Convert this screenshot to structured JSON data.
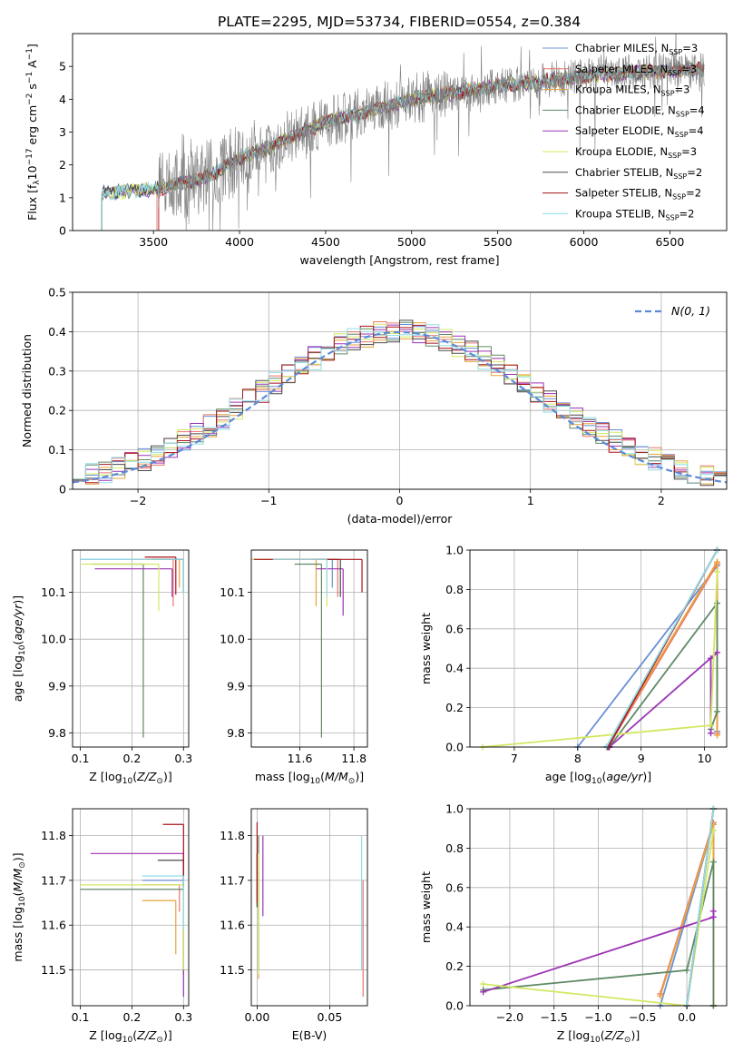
{
  "figure": {
    "title": "PLATE=2295, MJD=53734, FIBERID=0554, z=0.384"
  },
  "models": [
    {
      "name": "Chabrier MILES, N$_{SSP}$=3",
      "label": "Chabrier MILES, N",
      "ssp": "=3",
      "color": "#6b8fd6"
    },
    {
      "name": "Salpeter MILES, N$_{SSP}$=3",
      "label": "Salpeter MILES, N",
      "ssp": "=3",
      "color": "#e8766e"
    },
    {
      "name": "Kroupa MILES, N$_{SSP}$=3",
      "label": "Kroupa MILES, N",
      "ssp": "=3",
      "color": "#e8a23c"
    },
    {
      "name": "Chabrier ELODIE, N$_{SSP}$=4",
      "label": "Chabrier ELODIE, N",
      "ssp": "=4",
      "color": "#5f8a66"
    },
    {
      "name": "Salpeter ELODIE, N$_{SSP}$=4",
      "label": "Salpeter ELODIE, N",
      "ssp": "=4",
      "color": "#9b33b5"
    },
    {
      "name": "Kroupa ELODIE, N$_{SSP}$=3",
      "label": "Kroupa ELODIE, N",
      "ssp": "=3",
      "color": "#d2e862"
    },
    {
      "name": "Chabrier STELIB, N$_{SSP}$=2",
      "label": "Chabrier STELIB, N",
      "ssp": "=2",
      "color": "#4a4a4a"
    },
    {
      "name": "Salpeter STELIB, N$_{SSP}$=2",
      "label": "Salpeter STELIB, N",
      "ssp": "=2",
      "color": "#a8141a"
    },
    {
      "name": "Kroupa STELIB, N$_{SSP}$=2",
      "label": "Kroupa STELIB, N",
      "ssp": "=2",
      "color": "#8fdde6"
    }
  ],
  "chart_data": [
    {
      "id": "spectrum",
      "type": "line",
      "xlabel": "wavelength [Angstrom, rest frame]",
      "ylabel": "Flux [f$_\\lambda$10$^{-17}$ erg cm$^{-2}$ s$^{-1}$ A$^{-1}$]",
      "xlim": [
        3030,
        6830
      ],
      "ylim": [
        0,
        6
      ],
      "xticks": [
        3500,
        4000,
        4500,
        5000,
        5500,
        6000,
        6500
      ],
      "yticks": [
        0,
        1,
        2,
        3,
        4,
        5
      ],
      "data_color": "#808080",
      "model_level_points": [
        [
          3200,
          1.15
        ],
        [
          3500,
          1.25
        ],
        [
          3800,
          1.6
        ],
        [
          4000,
          2.2
        ],
        [
          4200,
          2.6
        ],
        [
          4500,
          3.3
        ],
        [
          4800,
          3.7
        ],
        [
          5000,
          4.0
        ],
        [
          5500,
          4.4
        ],
        [
          6000,
          4.7
        ],
        [
          6500,
          4.9
        ],
        [
          6700,
          4.9
        ]
      ],
      "model_start_wavelengths": [
        3200,
        3520,
        3200,
        3200,
        3200,
        3200,
        3200,
        3530,
        3200
      ],
      "model_end_wavelength": 6700,
      "data_start_wavelength": 3530,
      "data_end_wavelength": 6700,
      "grid": false,
      "legend_location": "upper right"
    },
    {
      "id": "residuals",
      "type": "histogram",
      "xlabel": "(data-model)/error",
      "ylabel": "Normed distribution",
      "xlim": [
        -2.5,
        2.5
      ],
      "ylim": [
        0,
        0.5
      ],
      "xticks": [
        -2,
        -1,
        0,
        1,
        2
      ],
      "yticks": [
        0,
        0.1,
        0.2,
        0.3,
        0.4,
        0.5
      ],
      "reference_curve": {
        "name": "$\\mathcal{N}(0,1)$",
        "label": "N(0, 1)",
        "color": "#5b8ad8",
        "mu": 0,
        "sigma": 1
      },
      "bin_width": 0.1,
      "grid": true,
      "legend_location": "upper right"
    },
    {
      "id": "age-vs-Z",
      "type": "scatter-errorbar",
      "xlabel": "Z [log$_{10}$(Z/Z$_\\odot$)]",
      "ylabel": "age  [log$_{10}$(age/yr)]",
      "xlim": [
        0.085,
        0.31
      ],
      "ylim": [
        9.77,
        10.19
      ],
      "xticks": [
        0.1,
        0.2,
        0.3
      ],
      "yticks": [
        9.8,
        9.9,
        10.0,
        10.1
      ],
      "points": [
        {
          "x": 0.3,
          "y": 10.17,
          "xerr": [
            0.2,
            0
          ],
          "yerr": [
            0.06,
            0
          ]
        },
        {
          "x": 0.28,
          "y": 10.17,
          "xerr": [
            0.08,
            0
          ],
          "yerr": [
            0.1,
            0
          ]
        },
        {
          "x": 0.292,
          "y": 10.17,
          "xerr": [
            0.07,
            0
          ],
          "yerr": [
            0.06,
            0
          ]
        },
        {
          "x": 0.222,
          "y": 10.16,
          "xerr": [
            0.1,
            0
          ],
          "yerr": [
            0.37,
            0
          ]
        },
        {
          "x": 0.278,
          "y": 10.15,
          "xerr": [
            0.15,
            0
          ],
          "yerr": [
            0.06,
            0
          ]
        },
        {
          "x": 0.252,
          "y": 10.16,
          "xerr": [
            0.15,
            0
          ],
          "yerr": [
            0.1,
            0
          ]
        },
        {
          "x": 0.3,
          "y": 10.17,
          "xerr": [
            0.06,
            0
          ],
          "yerr": [
            0.07,
            0
          ]
        },
        {
          "x": 0.285,
          "y": 10.175,
          "xerr": [
            0.06,
            0
          ],
          "yerr": [
            0.08,
            0
          ]
        },
        {
          "x": 0.3,
          "y": 10.17,
          "xerr": [
            0.2,
            0
          ],
          "yerr": [
            0.07,
            0
          ]
        }
      ],
      "grid": true
    },
    {
      "id": "age-vs-mass",
      "type": "scatter-errorbar",
      "xlabel": "mass [log$_{10}$(M/M$_\\odot$)]",
      "ylabel": "",
      "xlim": [
        11.42,
        11.85
      ],
      "ylim": [
        9.77,
        10.19
      ],
      "xticks": [
        11.6,
        11.8
      ],
      "yticks": [
        9.8,
        9.9,
        10.0,
        10.1
      ],
      "points": [
        {
          "x": 11.72,
          "y": 10.17,
          "xerr": [
            0.3,
            0
          ],
          "yerr": [
            0.06,
            0
          ]
        },
        {
          "x": 11.74,
          "y": 10.17,
          "xerr": [
            0.18,
            0
          ],
          "yerr": [
            0.08,
            0
          ]
        },
        {
          "x": 11.66,
          "y": 10.17,
          "xerr": [
            0.2,
            0
          ],
          "yerr": [
            0.1,
            0
          ]
        },
        {
          "x": 11.68,
          "y": 10.16,
          "xerr": [
            0.1,
            0
          ],
          "yerr": [
            0.37,
            0
          ]
        },
        {
          "x": 11.76,
          "y": 10.15,
          "xerr": [
            0.1,
            0
          ],
          "yerr": [
            0.1,
            0
          ]
        },
        {
          "x": 11.7,
          "y": 10.17,
          "xerr": [
            0.3,
            0
          ],
          "yerr": [
            0.1,
            0
          ]
        },
        {
          "x": 11.75,
          "y": 10.17,
          "xerr": [
            0.1,
            0
          ],
          "yerr": [
            0.08,
            0
          ]
        },
        {
          "x": 11.83,
          "y": 10.17,
          "xerr": [
            0.4,
            0
          ],
          "yerr": [
            0.07,
            0
          ]
        },
        {
          "x": 11.7,
          "y": 10.17,
          "xerr": [
            0.2,
            0
          ],
          "yerr": [
            0.08,
            0
          ]
        }
      ],
      "grid": true
    },
    {
      "id": "weight-vs-age",
      "type": "line",
      "xlabel": "age  [log$_{10}$(age/yr)]",
      "ylabel": "mass weight",
      "xlim": [
        6.3,
        10.35
      ],
      "ylim": [
        0,
        1
      ],
      "xticks": [
        7,
        8,
        9,
        10
      ],
      "yticks": [
        0,
        0.2,
        0.4,
        0.6,
        0.8,
        1.0
      ],
      "series": [
        {
          "x": [
            8.0,
            10.2,
            10.2
          ],
          "y": [
            0.0,
            0.92,
            0.08
          ]
        },
        {
          "x": [
            8.48,
            10.2,
            10.2
          ],
          "y": [
            0.0,
            0.93,
            0.07
          ]
        },
        {
          "x": [
            8.46,
            10.2,
            10.2
          ],
          "y": [
            0.0,
            0.94,
            0.06
          ]
        },
        {
          "x": [
            8.5,
            10.2,
            10.2,
            10.1
          ],
          "y": [
            0.0,
            0.73,
            0.18,
            0.09
          ]
        },
        {
          "x": [
            8.5,
            10.2,
            10.1,
            10.1
          ],
          "y": [
            0.0,
            0.48,
            0.45,
            0.07
          ]
        },
        {
          "x": [
            6.5,
            10.1,
            10.2
          ],
          "y": [
            0.0,
            0.11,
            0.89
          ]
        },
        {
          "x": [
            8.46,
            10.2
          ],
          "y": [
            0.0,
            1.0
          ]
        },
        {
          "x": [
            8.48,
            10.2
          ],
          "y": [
            0.0,
            1.0
          ]
        },
        {
          "x": [
            8.45,
            10.2
          ],
          "y": [
            0.0,
            1.0
          ]
        }
      ],
      "grid": true
    },
    {
      "id": "mass-vs-Z",
      "type": "scatter-errorbar",
      "xlabel": "Z [log$_{10}$(Z/Z$_\\odot$)]",
      "ylabel": "mass [log$_{10}$(M/M$_\\odot$)]",
      "xlim": [
        0.085,
        0.31
      ],
      "ylim": [
        11.42,
        11.86
      ],
      "xticks": [
        0.1,
        0.2,
        0.3
      ],
      "yticks": [
        11.5,
        11.6,
        11.7,
        11.8
      ],
      "points": [
        {
          "x": 0.3,
          "y": 11.7,
          "xerr": [
            0.08,
            0
          ],
          "yerr": [
            0.1,
            0
          ]
        },
        {
          "x": 0.292,
          "y": 11.69,
          "xerr": [
            0.07,
            0
          ],
          "yerr": [
            0.06,
            0
          ]
        },
        {
          "x": 0.285,
          "y": 11.655,
          "xerr": [
            0.065,
            0
          ],
          "yerr": [
            0.12,
            0
          ]
        },
        {
          "x": 0.3,
          "y": 11.68,
          "xerr": [
            0.2,
            0
          ],
          "yerr": [
            0.19,
            0
          ]
        },
        {
          "x": 0.3,
          "y": 11.76,
          "xerr": [
            0.18,
            0
          ],
          "yerr": [
            0.32,
            0
          ]
        },
        {
          "x": 0.3,
          "y": 11.69,
          "xerr": [
            0.2,
            0
          ],
          "yerr": [
            0.19,
            0
          ]
        },
        {
          "x": 0.3,
          "y": 11.745,
          "xerr": [
            0.05,
            0
          ],
          "yerr": [
            0.06,
            0
          ]
        },
        {
          "x": 0.3,
          "y": 11.825,
          "xerr": [
            0.04,
            0
          ],
          "yerr": [
            0.12,
            0
          ]
        },
        {
          "x": 0.3,
          "y": 11.71,
          "xerr": [
            0.08,
            0
          ],
          "yerr": [
            0.12,
            0
          ]
        }
      ],
      "grid": true
    },
    {
      "id": "mass-vs-ebv",
      "type": "scatter-errorbar",
      "xlabel": "E(B-V)",
      "ylabel": "",
      "xlim": [
        -0.004,
        0.076
      ],
      "ylim": [
        11.42,
        11.86
      ],
      "xticks": [
        0.0,
        0.05
      ],
      "yticks": [
        11.5,
        11.6,
        11.7,
        11.8
      ],
      "points": [
        {
          "x": 0.0,
          "y": 11.7,
          "xerr": [
            0,
            0
          ],
          "yerr": [
            0.06,
            0.06
          ]
        },
        {
          "x": 0.073,
          "y": 11.58,
          "xerr": [
            0,
            0
          ],
          "yerr": [
            0.14,
            0.12
          ]
        },
        {
          "x": 0.001,
          "y": 11.6,
          "xerr": [
            0,
            0
          ],
          "yerr": [
            0.12,
            0.12
          ]
        },
        {
          "x": 0.001,
          "y": 11.65,
          "xerr": [
            0,
            0
          ],
          "yerr": [
            0.15,
            0.15
          ]
        },
        {
          "x": 0.004,
          "y": 11.71,
          "xerr": [
            0,
            0
          ],
          "yerr": [
            0.09,
            0.09
          ]
        },
        {
          "x": 0.001,
          "y": 11.62,
          "xerr": [
            0,
            0
          ],
          "yerr": [
            0.13,
            0.14
          ]
        },
        {
          "x": 0.0,
          "y": 11.7,
          "xerr": [
            0,
            0
          ],
          "yerr": [
            0.06,
            0.06
          ]
        },
        {
          "x": 0.0,
          "y": 11.74,
          "xerr": [
            0,
            0
          ],
          "yerr": [
            0.09,
            0.09
          ]
        },
        {
          "x": 0.072,
          "y": 11.65,
          "xerr": [
            0,
            0
          ],
          "yerr": [
            0.15,
            0.15
          ]
        }
      ],
      "grid": true
    },
    {
      "id": "weight-vs-Z",
      "type": "line",
      "xlabel": "Z [log$_{10}$(Z/Z$_\\odot$)]",
      "ylabel": "mass weight",
      "xlim": [
        -2.45,
        0.45
      ],
      "ylim": [
        0,
        1
      ],
      "xticks": [
        -2.0,
        -1.5,
        -1.0,
        -0.5,
        0.0
      ],
      "yticks": [
        0,
        0.2,
        0.4,
        0.6,
        0.8,
        1.0
      ],
      "series": [
        {
          "x": [
            -0.3,
            0.3,
            0.3
          ],
          "y": [
            0.0,
            0.92,
            0.0
          ]
        },
        {
          "x": [
            -0.3,
            0.3,
            0.3
          ],
          "y": [
            0.06,
            0.93,
            0.0
          ]
        },
        {
          "x": [
            -0.3,
            0.3,
            0.3
          ],
          "y": [
            0.05,
            0.92,
            0.0
          ]
        },
        {
          "x": [
            -2.3,
            0.0,
            0.3,
            0.3
          ],
          "y": [
            0.08,
            0.18,
            0.73,
            0.0
          ]
        },
        {
          "x": [
            -2.3,
            0.3,
            0.3
          ],
          "y": [
            0.07,
            0.45,
            0.48
          ]
        },
        {
          "x": [
            -2.3,
            0.0,
            0.3
          ],
          "y": [
            0.11,
            0.0,
            0.89
          ]
        },
        {
          "x": [
            0.0,
            0.3
          ],
          "y": [
            0.0,
            1.0
          ]
        },
        {
          "x": [
            0.0,
            0.3
          ],
          "y": [
            0.0,
            1.0
          ]
        },
        {
          "x": [
            0.0,
            0.3
          ],
          "y": [
            0.0,
            1.0
          ]
        }
      ],
      "grid": true
    }
  ]
}
